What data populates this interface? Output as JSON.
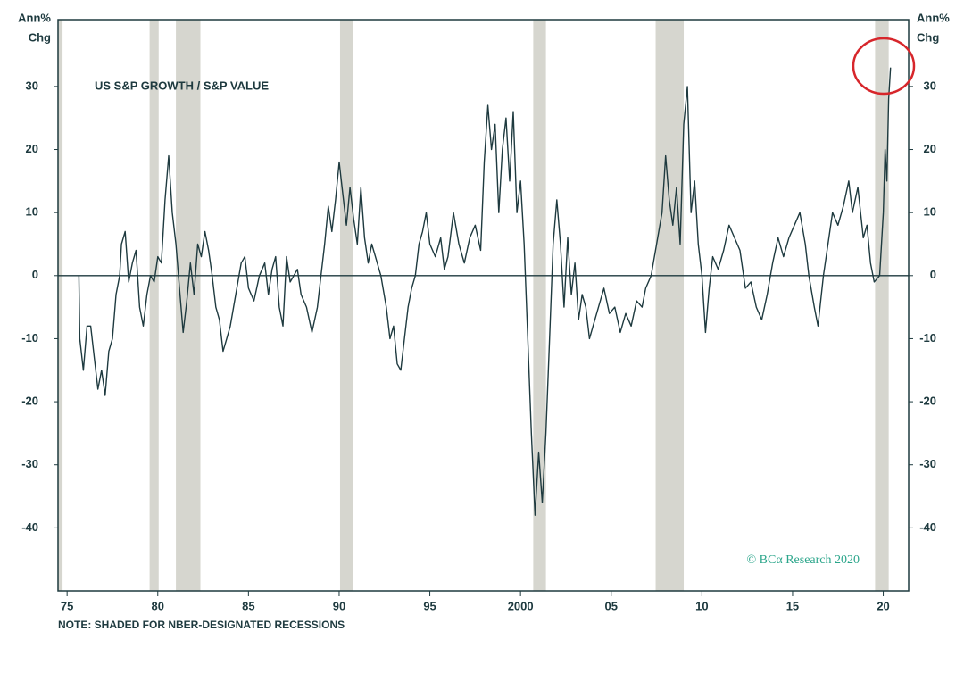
{
  "chart_data": {
    "type": "line",
    "title": "US S&P GROWTH / S&P VALUE",
    "note": "NOTE: SHADED FOR NBER-DESIGNATED RECESSIONS",
    "source": "© BCα Research 2020",
    "ylabel_lines": [
      "Ann%",
      "Chg"
    ],
    "y2label_lines": [
      "Ann%",
      "Chg"
    ],
    "xlim": [
      1974.5,
      2021.4
    ],
    "xticks": [
      {
        "value": 1975,
        "label": "75"
      },
      {
        "value": 1980,
        "label": "80"
      },
      {
        "value": 1985,
        "label": "85"
      },
      {
        "value": 1990,
        "label": "90"
      },
      {
        "value": 1995,
        "label": "95"
      },
      2000,
      {
        "value": 2005,
        "label": "05"
      },
      {
        "value": 2010,
        "label": "10"
      },
      {
        "value": 2015,
        "label": "15"
      },
      {
        "value": 2020,
        "label": "20"
      }
    ],
    "ylim": [
      -50,
      40.6
    ],
    "yticks": [
      -40,
      -30,
      -20,
      -10,
      0,
      10,
      20,
      30
    ],
    "y2lim": [
      -50,
      40.6
    ],
    "y2ticks": [
      -40,
      -30,
      -20,
      -10,
      0,
      10,
      20,
      30
    ],
    "recessions": [
      [
        1974.5,
        1974.75
      ],
      [
        1979.55,
        1980.05
      ],
      [
        1981.0,
        1982.35
      ],
      [
        1990.05,
        1990.75
      ],
      [
        2000.7,
        2001.4
      ],
      [
        2007.45,
        2009.0
      ],
      [
        2019.55,
        2020.3
      ]
    ],
    "recession_color": "#d6d6cf",
    "zero_line": true,
    "series": [
      {
        "color": "#1e3a3f",
        "x": [
          1975.65,
          1975.7,
          1975.9,
          1976.1,
          1976.3,
          1976.5,
          1976.7,
          1976.9,
          1977.1,
          1977.3,
          1977.5,
          1977.7,
          1977.9,
          1978.0,
          1978.2,
          1978.4,
          1978.6,
          1978.8,
          1979.0,
          1979.2,
          1979.4,
          1979.6,
          1979.8,
          1980.0,
          1980.2,
          1980.4,
          1980.6,
          1980.8,
          1981.0,
          1981.2,
          1981.4,
          1981.6,
          1981.8,
          1982.0,
          1982.2,
          1982.4,
          1982.6,
          1982.8,
          1983.0,
          1983.2,
          1983.4,
          1983.6,
          1983.8,
          1984.0,
          1984.3,
          1984.6,
          1984.8,
          1985.0,
          1985.3,
          1985.6,
          1985.9,
          1986.1,
          1986.3,
          1986.5,
          1986.7,
          1986.9,
          1987.1,
          1987.3,
          1987.5,
          1987.7,
          1987.9,
          1988.2,
          1988.5,
          1988.8,
          1989.0,
          1989.2,
          1989.4,
          1989.6,
          1989.8,
          1990.0,
          1990.2,
          1990.4,
          1990.6,
          1990.8,
          1991.0,
          1991.2,
          1991.4,
          1991.6,
          1991.8,
          1992.0,
          1992.3,
          1992.6,
          1992.8,
          1993.0,
          1993.2,
          1993.4,
          1993.6,
          1993.8,
          1994.0,
          1994.2,
          1994.4,
          1994.6,
          1994.8,
          1995.0,
          1995.3,
          1995.6,
          1995.8,
          1996.0,
          1996.3,
          1996.6,
          1996.9,
          1997.2,
          1997.5,
          1997.8,
          1998.0,
          1998.2,
          1998.4,
          1998.6,
          1998.8,
          1999.0,
          1999.2,
          1999.4,
          1999.6,
          1999.8,
          2000.0,
          2000.2,
          2000.4,
          2000.6,
          2000.8,
          2001.0,
          2001.2,
          2001.4,
          2001.6,
          2001.8,
          2002.0,
          2002.2,
          2002.4,
          2002.6,
          2002.8,
          2003.0,
          2003.2,
          2003.4,
          2003.6,
          2003.8,
          2004.0,
          2004.3,
          2004.6,
          2004.9,
          2005.2,
          2005.5,
          2005.8,
          2006.1,
          2006.4,
          2006.7,
          2006.9,
          2007.2,
          2007.5,
          2007.8,
          2008.0,
          2008.2,
          2008.4,
          2008.6,
          2008.8,
          2009.0,
          2009.2,
          2009.4,
          2009.6,
          2009.8,
          2010.0,
          2010.2,
          2010.4,
          2010.6,
          2010.9,
          2011.2,
          2011.5,
          2011.8,
          2012.1,
          2012.4,
          2012.7,
          2013.0,
          2013.3,
          2013.6,
          2013.9,
          2014.2,
          2014.5,
          2014.8,
          2015.1,
          2015.4,
          2015.7,
          2015.9,
          2016.2,
          2016.4,
          2016.7,
          2016.9,
          2017.2,
          2017.5,
          2017.8,
          2018.1,
          2018.3,
          2018.6,
          2018.9,
          2019.1,
          2019.3,
          2019.5,
          2019.8,
          2020.0,
          2020.1,
          2020.2,
          2020.3,
          2020.4
        ],
        "values": [
          0,
          -10,
          -15,
          -8,
          -8,
          -13,
          -18,
          -15,
          -19,
          -12,
          -10,
          -3,
          0,
          5,
          7,
          -1,
          2,
          4,
          -5,
          -8,
          -3,
          0,
          -1,
          3,
          2,
          12,
          19,
          10,
          5,
          -2,
          -9,
          -4,
          2,
          -3,
          5,
          3,
          7,
          4,
          0,
          -5,
          -7,
          -12,
          -10,
          -8,
          -3,
          2,
          3,
          -2,
          -4,
          0,
          2,
          -3,
          1,
          3,
          -5,
          -8,
          3,
          -1,
          0,
          1,
          -3,
          -5,
          -9,
          -5,
          0,
          5,
          11,
          7,
          12,
          18,
          13,
          8,
          14,
          9,
          5,
          14,
          6,
          2,
          5,
          3,
          0,
          -5,
          -10,
          -8,
          -14,
          -15,
          -10,
          -5,
          -2,
          0,
          5,
          7,
          10,
          5,
          3,
          6,
          1,
          3,
          10,
          5,
          2,
          6,
          8,
          4,
          18,
          27,
          20,
          24,
          10,
          20,
          25,
          15,
          26,
          10,
          15,
          5,
          -10,
          -25,
          -38,
          -28,
          -36,
          -25,
          -10,
          5,
          12,
          5,
          -5,
          6,
          -3,
          2,
          -7,
          -3,
          -5,
          -10,
          -8,
          -5,
          -2,
          -6,
          -5,
          -9,
          -6,
          -8,
          -4,
          -5,
          -2,
          0,
          5,
          10,
          19,
          12,
          8,
          14,
          5,
          24,
          30,
          10,
          15,
          5,
          0,
          -9,
          -2,
          3,
          1,
          4,
          8,
          6,
          4,
          -2,
          -1,
          -5,
          -7,
          -3,
          2,
          6,
          3,
          6,
          8,
          10,
          5,
          0,
          -5,
          -8,
          0,
          4,
          10,
          8,
          11,
          15,
          10,
          14,
          6,
          8,
          2,
          -1,
          0,
          10,
          20,
          15,
          28,
          33
        ]
      }
    ]
  }
}
